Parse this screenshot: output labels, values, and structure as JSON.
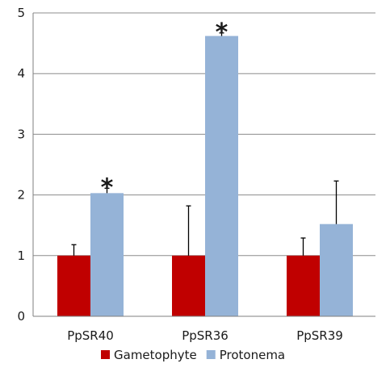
{
  "chart_data": {
    "type": "bar",
    "title": "",
    "xlabel": "",
    "ylabel": "",
    "categories": [
      "PpSR40",
      "PpSR36",
      "PpSR39"
    ],
    "ylim": [
      0,
      5
    ],
    "yticks": [
      0,
      1,
      2,
      3,
      4,
      5
    ],
    "grid": true,
    "legend_position": "bottom",
    "series": [
      {
        "name": "Gametophyte",
        "color": "#C00000",
        "values": [
          1.0,
          1.0,
          1.0
        ],
        "error_upper": [
          0.18,
          0.82,
          0.29
        ]
      },
      {
        "name": "Protonema",
        "color": "#95B3D7",
        "values": [
          2.03,
          4.62,
          1.52
        ],
        "error_upper": [
          0.08,
          0.05,
          0.71
        ]
      }
    ],
    "significance_markers": [
      {
        "category": "PpSR40",
        "series": "Protonema",
        "symbol": "*"
      },
      {
        "category": "PpSR36",
        "series": "Protonema",
        "symbol": "*"
      }
    ]
  }
}
